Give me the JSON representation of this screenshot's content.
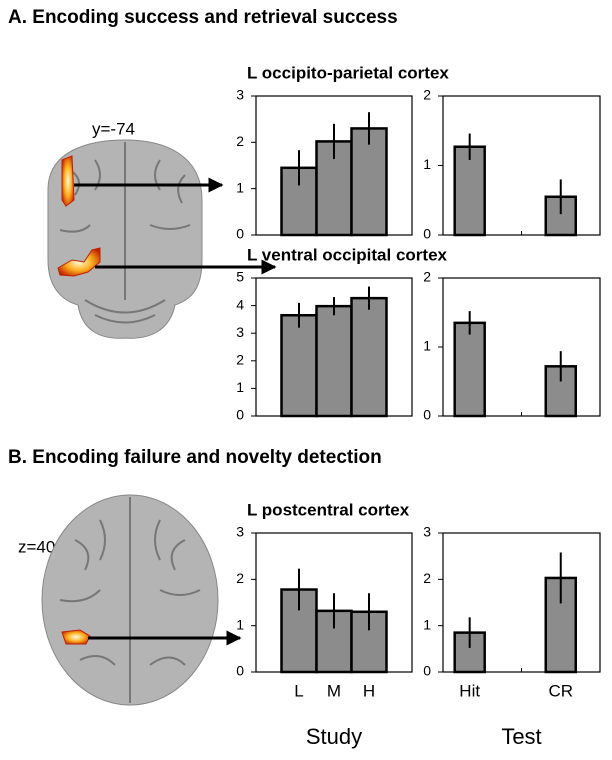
{
  "panels": [
    {
      "heading": "A. Encoding success and retrieval success",
      "slice_label": "y=-74"
    },
    {
      "heading": "B. Encoding failure and novelty detection",
      "slice_label": "z=40"
    }
  ],
  "chart_data": [
    {
      "type": "bar",
      "title": "L occipito-parietal cortex",
      "categories": [
        null,
        null,
        null
      ],
      "values": [
        1.45,
        2.02,
        2.3
      ],
      "errors": [
        0.38,
        0.38,
        0.35
      ],
      "color": "#8c8c8c",
      "ylim": [
        0,
        3
      ],
      "yticks": [
        0,
        1,
        2,
        3
      ]
    },
    {
      "type": "bar",
      "categories": [
        null,
        null
      ],
      "values": [
        1.27,
        0.55
      ],
      "errors": [
        0.19,
        0.25
      ],
      "color": "#8c8c8c",
      "ylim": [
        0,
        2
      ],
      "yticks": [
        0,
        1,
        2
      ]
    },
    {
      "type": "bar",
      "title": "L ventral occipital cortex",
      "categories": [
        null,
        null,
        null
      ],
      "values": [
        3.65,
        3.98,
        4.27
      ],
      "errors": [
        0.45,
        0.33,
        0.42
      ],
      "color": "#8c8c8c",
      "ylim": [
        0,
        5
      ],
      "yticks": [
        0,
        1,
        2,
        3,
        4,
        5
      ]
    },
    {
      "type": "bar",
      "categories": [
        null,
        null
      ],
      "values": [
        1.35,
        0.72
      ],
      "errors": [
        0.17,
        0.22
      ],
      "color": "#8c8c8c",
      "ylim": [
        0,
        2
      ],
      "yticks": [
        0,
        1,
        2
      ]
    },
    {
      "type": "bar",
      "title": "L postcentral cortex",
      "categories": [
        "L",
        "M",
        "H"
      ],
      "xlabel": "Study",
      "values": [
        1.78,
        1.32,
        1.3
      ],
      "errors": [
        0.45,
        0.38,
        0.4
      ],
      "color": "#8c8c8c",
      "ylim": [
        0,
        3
      ],
      "yticks": [
        0,
        1,
        2,
        3
      ]
    },
    {
      "type": "bar",
      "categories": [
        "Hit",
        "CR"
      ],
      "xlabel": "Test",
      "values": [
        0.85,
        2.03
      ],
      "errors": [
        0.33,
        0.55
      ],
      "color": "#8c8c8c",
      "ylim": [
        0,
        3
      ],
      "yticks": [
        0,
        1,
        2,
        3
      ]
    }
  ]
}
